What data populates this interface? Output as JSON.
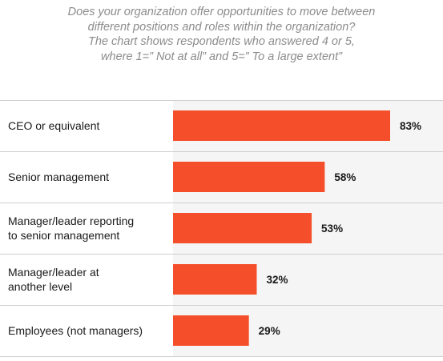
{
  "chart_data": {
    "type": "bar",
    "orientation": "horizontal",
    "title_lines": [
      "Does your organization offer opportunities to move between",
      "different positions and roles within the organization?",
      "The chart shows respondents who answered 4 or 5,",
      "where 1=” Not at all” and 5=” To a large extent”"
    ],
    "categories": [
      [
        "CEO or equivalent"
      ],
      [
        "Senior management"
      ],
      [
        "Manager/leader reporting",
        "to senior management"
      ],
      [
        "Manager/leader at",
        "another level"
      ],
      [
        "Employees (not managers)"
      ]
    ],
    "values": [
      83,
      58,
      53,
      32,
      29
    ],
    "value_labels": [
      "83%",
      "58%",
      "53%",
      "32%",
      "29%"
    ],
    "xlim": [
      0,
      100
    ],
    "bar_color": "#f54e2a",
    "plot_background": "#f5f5f5",
    "grid": false,
    "legend": "none"
  }
}
